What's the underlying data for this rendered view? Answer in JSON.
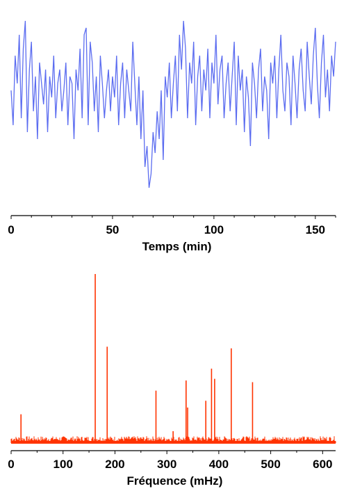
{
  "chart_data": [
    {
      "type": "line",
      "xlabel": "Temps (min)",
      "ylabel": "",
      "xlim": [
        0,
        160
      ],
      "xticks": [
        "0",
        "50",
        "100",
        "150"
      ],
      "xtick_values": [
        0,
        50,
        100,
        150
      ],
      "grid": false,
      "color": "#5b6cf0",
      "series": [
        {
          "x": [
            0,
            1,
            2,
            3,
            4,
            5,
            6,
            7,
            8,
            9,
            10,
            11,
            12,
            13,
            14,
            15,
            16,
            17,
            18,
            19,
            20,
            21,
            22,
            23,
            24,
            25,
            26,
            27,
            28,
            29,
            30,
            31,
            32,
            33,
            34,
            35,
            36,
            37,
            38,
            39,
            40,
            41,
            42,
            43,
            44,
            45,
            46,
            47,
            48,
            49,
            50,
            51,
            52,
            53,
            54,
            55,
            56,
            57,
            58,
            59,
            60,
            61,
            62,
            63,
            64,
            65,
            66,
            67,
            68,
            69,
            70,
            71,
            72,
            73,
            74,
            75,
            76,
            77,
            78,
            79,
            80,
            81,
            82,
            83,
            84,
            85,
            86,
            87,
            88,
            89,
            90,
            91,
            92,
            93,
            94,
            95,
            96,
            97,
            98,
            99,
            100,
            101,
            102,
            103,
            104,
            105,
            106,
            107,
            108,
            109,
            110,
            111,
            112,
            113,
            114,
            115,
            116,
            117,
            118,
            119,
            120,
            121,
            122,
            123,
            124,
            125,
            126,
            127,
            128,
            129,
            130,
            131,
            132,
            133,
            134,
            135,
            136,
            137,
            138,
            139,
            140,
            141,
            142,
            143,
            144,
            145,
            146,
            147,
            148,
            149,
            150,
            151,
            152,
            153,
            154,
            155,
            156,
            157,
            158,
            159,
            160
          ],
          "values": [
            0.1,
            -0.4,
            0.6,
            0.2,
            0.9,
            -0.3,
            0.7,
            1.1,
            -0.5,
            0.4,
            0.8,
            -0.2,
            0.3,
            -0.6,
            0.5,
            0.2,
            -0.1,
            0.4,
            -0.5,
            0.3,
            0.0,
            0.6,
            -0.3,
            0.2,
            0.4,
            -0.2,
            0.1,
            0.5,
            -0.4,
            0.3,
            0.2,
            -0.6,
            0.4,
            0.1,
            0.7,
            -0.3,
            0.9,
            1.0,
            -0.4,
            0.8,
            0.5,
            -0.2,
            0.3,
            -0.5,
            0.6,
            0.2,
            -0.3,
            0.1,
            0.4,
            -0.2,
            0.3,
            0.0,
            0.6,
            -0.4,
            0.2,
            0.5,
            -0.3,
            0.4,
            0.1,
            -0.2,
            0.8,
            0.2,
            -0.4,
            0.3,
            -0.6,
            0.1,
            -1.0,
            -0.7,
            -1.3,
            -1.1,
            -0.5,
            -0.8,
            -0.2,
            -0.6,
            0.1,
            -0.9,
            0.3,
            0.0,
            0.5,
            -0.3,
            0.2,
            0.6,
            -0.2,
            0.9,
            0.4,
            1.1,
            0.7,
            -0.3,
            0.5,
            0.2,
            0.8,
            -0.4,
            0.3,
            0.6,
            -0.2,
            0.4,
            0.1,
            0.7,
            -0.3,
            0.5,
            0.2,
            0.9,
            -0.1,
            0.4,
            0.6,
            -0.3,
            0.2,
            0.5,
            -0.2,
            0.3,
            0.8,
            -0.4,
            0.6,
            0.1,
            0.4,
            -0.5,
            0.3,
            0.0,
            -0.7,
            0.5,
            0.2,
            -0.3,
            0.4,
            0.7,
            -0.2,
            0.3,
            0.1,
            -0.6,
            0.5,
            0.2,
            0.6,
            -0.3,
            0.4,
            0.9,
            0.1,
            -0.2,
            0.5,
            0.3,
            -0.4,
            0.6,
            0.2,
            -0.3,
            0.4,
            0.7,
            0.1,
            -0.2,
            0.8,
            0.3,
            -0.1,
            0.6,
            1.0,
            0.2,
            -0.3,
            0.5,
            0.9,
            0.0,
            0.4,
            -0.2,
            0.6,
            0.3,
            0.8
          ]
        }
      ]
    },
    {
      "type": "line",
      "xlabel": "Fréquence (mHz)",
      "ylabel": "",
      "xlim": [
        0,
        625
      ],
      "xticks": [
        "0",
        "100",
        "200",
        "300",
        "400",
        "500",
        "600"
      ],
      "xtick_values": [
        0,
        100,
        200,
        300,
        400,
        500,
        600
      ],
      "grid": false,
      "color": "#ff3300",
      "peaks": [
        {
          "x": 19,
          "value": 0.17
        },
        {
          "x": 162,
          "value": 1.0
        },
        {
          "x": 185,
          "value": 0.57
        },
        {
          "x": 279,
          "value": 0.31
        },
        {
          "x": 312,
          "value": 0.07
        },
        {
          "x": 337,
          "value": 0.37
        },
        {
          "x": 340,
          "value": 0.21
        },
        {
          "x": 375,
          "value": 0.25
        },
        {
          "x": 386,
          "value": 0.44
        },
        {
          "x": 392,
          "value": 0.38
        },
        {
          "x": 424,
          "value": 0.56
        },
        {
          "x": 465,
          "value": 0.36
        }
      ],
      "noise_level": 0.04
    }
  ]
}
